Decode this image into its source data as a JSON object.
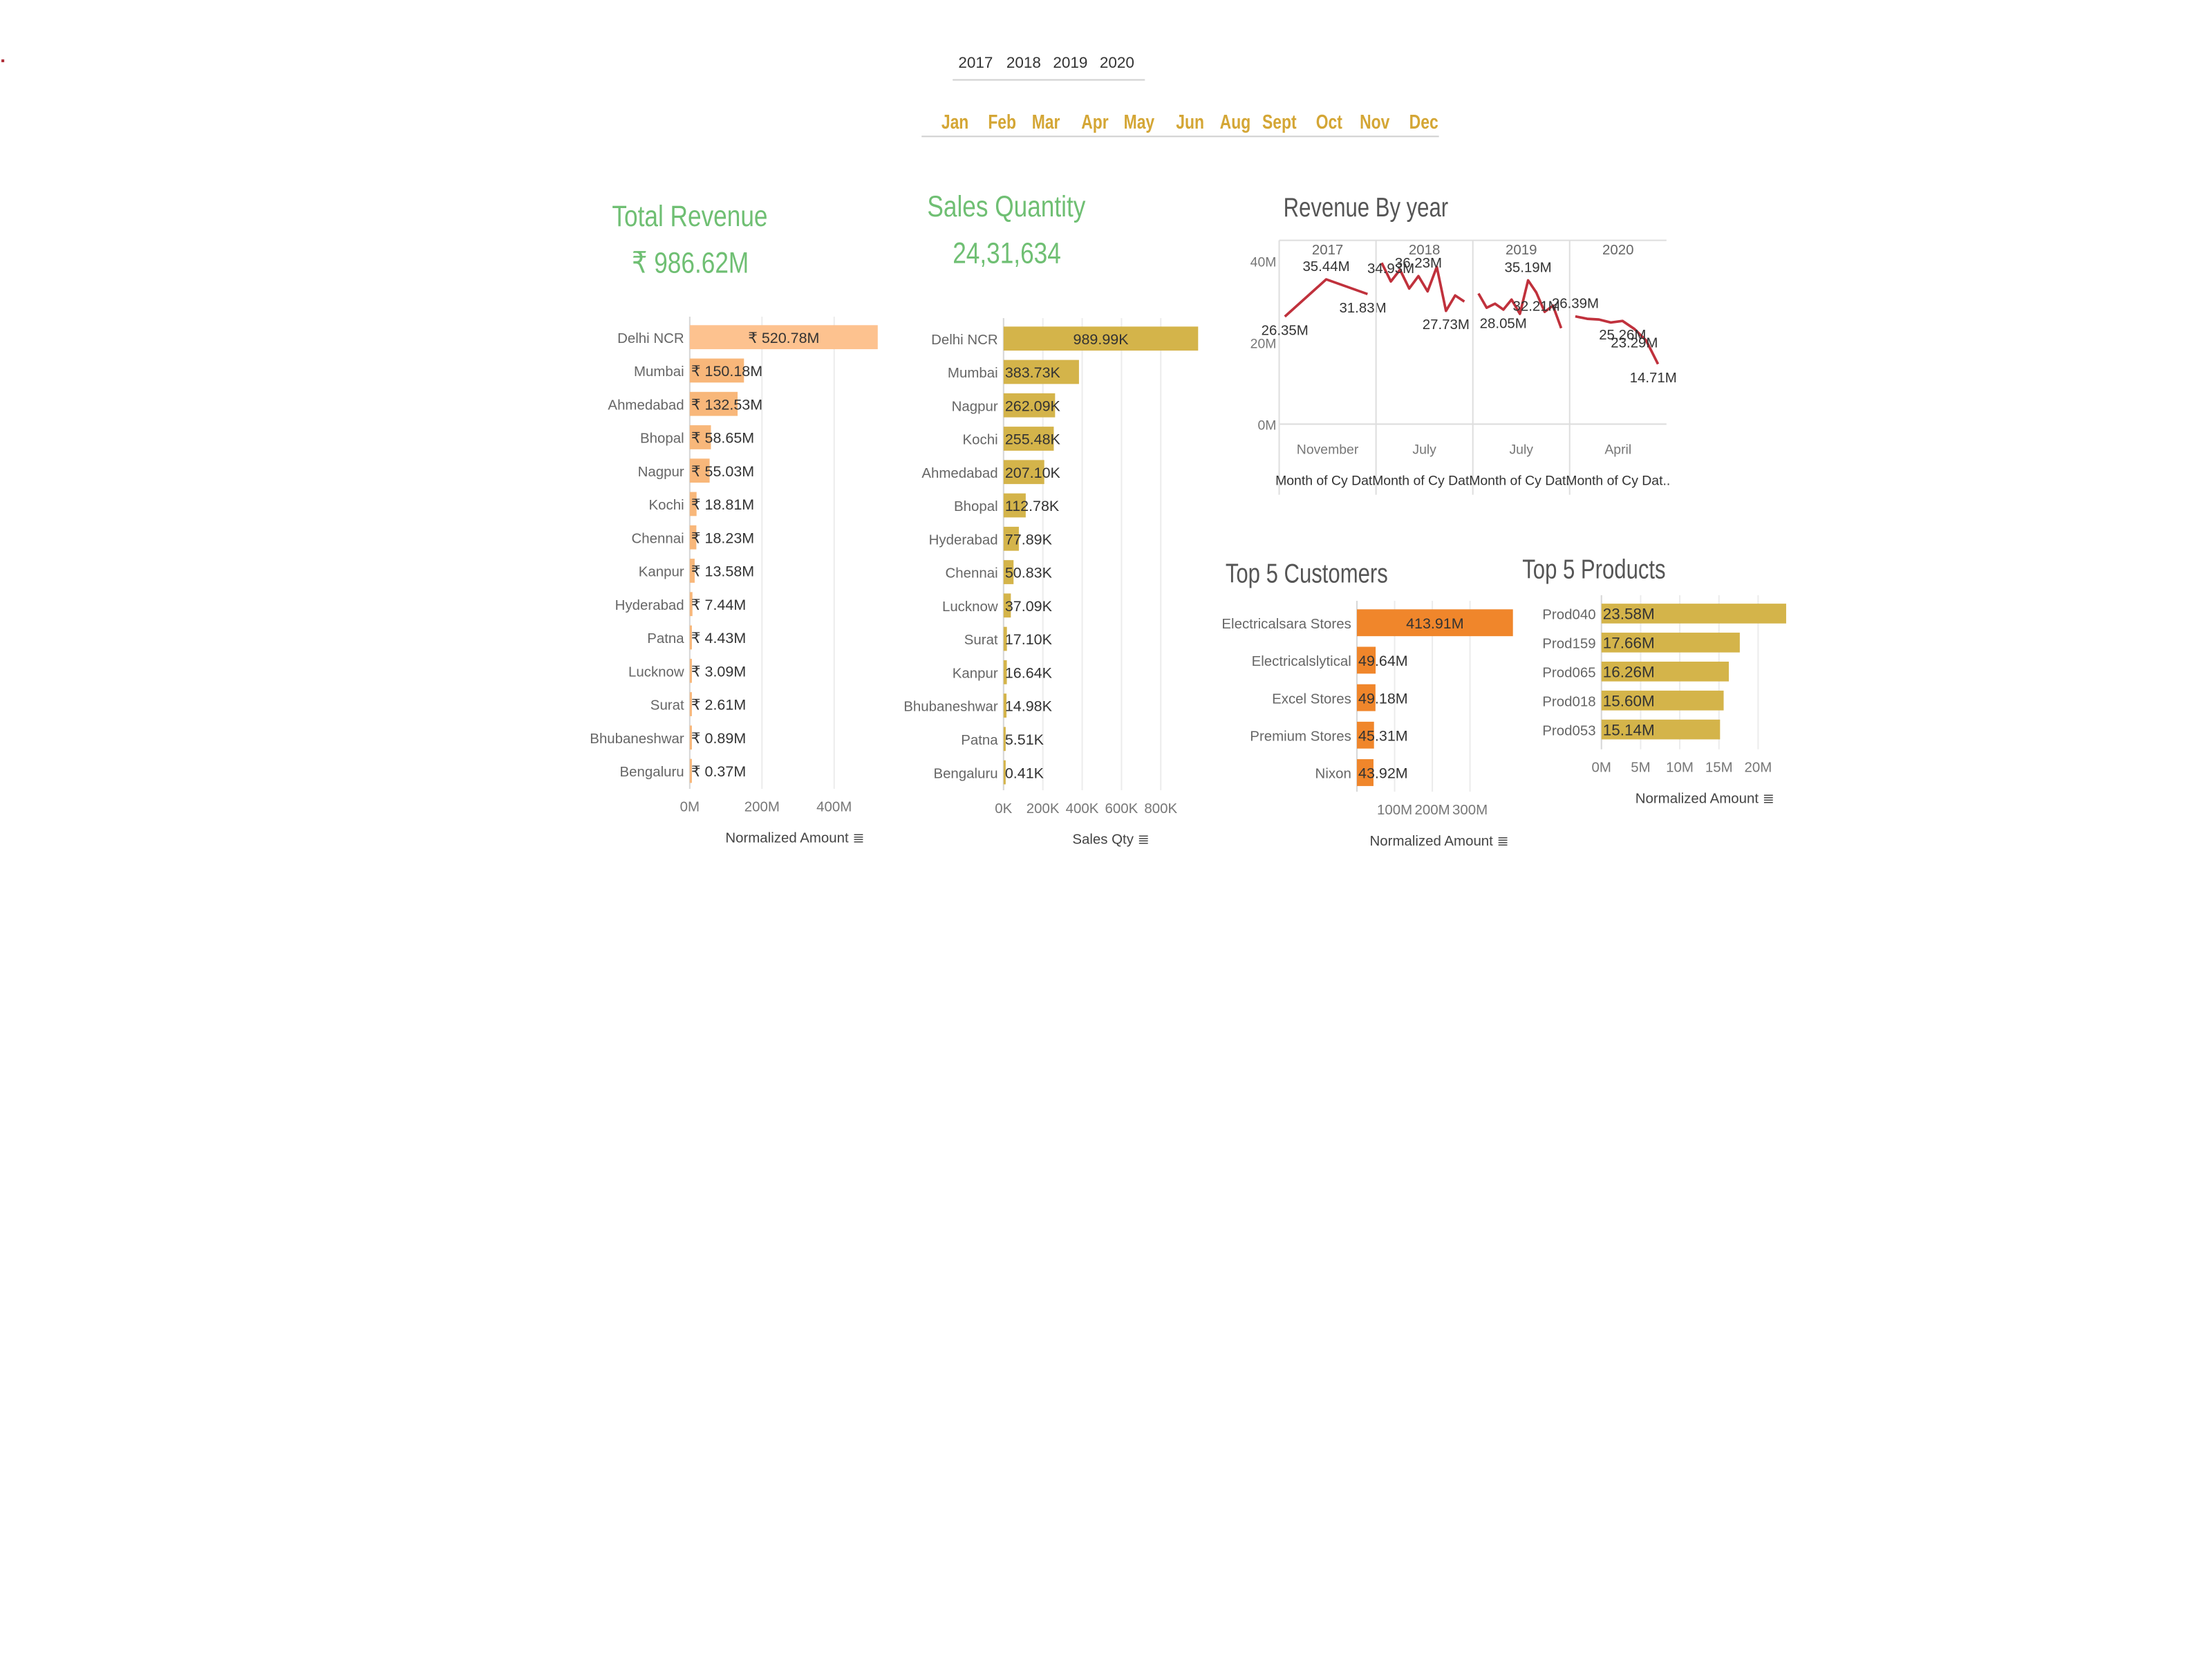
{
  "filters": {
    "years": [
      "2017",
      "2018",
      "2019",
      "2020"
    ],
    "months": [
      "Jan",
      "Feb",
      "Mar",
      "Apr",
      "May",
      "Jun",
      "Aug",
      "Sept",
      "Oct",
      "Nov",
      "Dec"
    ],
    "month_color": "#d4a635"
  },
  "kpis": {
    "revenue_title": "Total Revenue",
    "revenue_value": "₹ 986.62M",
    "qty_title": "Sales Quantity",
    "qty_value": "24,31,634",
    "color": "#6fbf73"
  },
  "chart_data": [
    {
      "id": "revenue_by_city",
      "type": "bar",
      "orientation": "horizontal",
      "color": "#f8b77a",
      "highlight_color": "#fdc28f",
      "categories": [
        "Delhi NCR",
        "Mumbai",
        "Ahmedabad",
        "Bhopal",
        "Nagpur",
        "Kochi",
        "Chennai",
        "Kanpur",
        "Hyderabad",
        "Patna",
        "Lucknow",
        "Surat",
        "Bhubaneshwar",
        "Bengaluru"
      ],
      "values": [
        520.78,
        150.18,
        132.53,
        58.65,
        55.03,
        18.81,
        18.23,
        13.58,
        7.44,
        4.43,
        3.09,
        2.61,
        0.89,
        0.37
      ],
      "labels": [
        "₹ 520.78M",
        "₹ 150.18M",
        "₹ 132.53M",
        "₹ 58.65M",
        "₹ 55.03M",
        "₹ 18.81M",
        "₹ 18.23M",
        "₹ 13.58M",
        "₹ 7.44M",
        "₹ 4.43M",
        "₹ 3.09M",
        "₹ 2.61M",
        "₹ 0.89M",
        "₹ 0.37M"
      ],
      "xticks": [
        "0M",
        "200M",
        "400M"
      ],
      "xtick_values": [
        0,
        200,
        400
      ],
      "xlim": [
        0,
        560
      ],
      "xlabel": "Normalized Amount"
    },
    {
      "id": "qty_by_city",
      "type": "bar",
      "orientation": "horizontal",
      "color": "#d4b44a",
      "categories": [
        "Delhi NCR",
        "Mumbai",
        "Nagpur",
        "Kochi",
        "Ahmedabad",
        "Bhopal",
        "Hyderabad",
        "Chennai",
        "Lucknow",
        "Surat",
        "Kanpur",
        "Bhubaneshwar",
        "Patna",
        "Bengaluru"
      ],
      "values": [
        989.99,
        383.73,
        262.09,
        255.48,
        207.1,
        112.78,
        77.89,
        50.83,
        37.09,
        17.1,
        16.64,
        14.98,
        5.51,
        0.41
      ],
      "labels": [
        "989.99K",
        "383.73K",
        "262.09K",
        "255.48K",
        "207.10K",
        "112.78K",
        "77.89K",
        "50.83K",
        "37.09K",
        "17.10K",
        "16.64K",
        "14.98K",
        "5.51K",
        "0.41K"
      ],
      "xticks": [
        "0K",
        "200K",
        "400K",
        "600K",
        "800K"
      ],
      "xtick_values": [
        0,
        200,
        400,
        600,
        800
      ],
      "xlim": [
        0,
        1050
      ],
      "xlabel": "Sales Qty"
    },
    {
      "id": "revenue_by_year",
      "type": "line",
      "title": "Revenue By year",
      "color": "#c0313c",
      "panels": [
        "2017",
        "2018",
        "2019",
        "2020"
      ],
      "panel_xlabels": [
        "November",
        "July",
        "July",
        "April"
      ],
      "panel_axis_label": "Month of Cy Dat..",
      "yticks": [
        "40M",
        "20M",
        "0M"
      ],
      "ytick_values": [
        40,
        20,
        0
      ],
      "ylim": [
        0,
        45
      ],
      "series": [
        {
          "values": [
            26.35,
            35.44,
            31.83
          ]
        },
        {
          "values": [
            39.5,
            34.93,
            37.8,
            33.2,
            36.23,
            32.5,
            38.5,
            27.73,
            31.5,
            30.0
          ]
        },
        {
          "values": [
            32.0,
            28.5,
            29.5,
            28.05,
            30.5,
            27.0,
            35.19,
            32.21,
            27.5,
            29.0,
            23.5
          ]
        },
        {
          "values": [
            26.39,
            25.8,
            25.6,
            24.9,
            25.26,
            23.29,
            20.5,
            14.71
          ]
        }
      ],
      "point_labels": [
        [
          "26.35M",
          "35.44M",
          "31.83M"
        ],
        [
          "",
          "34.93M",
          "",
          "",
          "36.23M",
          "",
          "",
          "27.73M",
          "",
          ""
        ],
        [
          "",
          "",
          "",
          "28.05M",
          "",
          "",
          "35.19M",
          "32.21M",
          "",
          "",
          ""
        ],
        [
          "26.39M",
          "",
          "",
          "",
          "25.26M",
          "23.29M",
          "",
          "14.71M"
        ]
      ]
    },
    {
      "id": "top_customers",
      "type": "bar",
      "orientation": "horizontal",
      "title": "Top 5 Customers",
      "color": "#f0862b",
      "categories": [
        "Electricalsara Stores",
        "Electricalslytical",
        "Excel Stores",
        "Premium Stores",
        "Nixon"
      ],
      "values": [
        413.91,
        49.64,
        49.18,
        45.31,
        43.92
      ],
      "labels": [
        "413.91M",
        "49.64M",
        "49.18M",
        "45.31M",
        "43.92M"
      ],
      "xticks": [
        "100M",
        "200M",
        "300M"
      ],
      "xtick_values": [
        100,
        200,
        300
      ],
      "xlim": [
        0,
        420
      ],
      "xlabel": "Normalized Amount"
    },
    {
      "id": "top_products",
      "type": "bar",
      "orientation": "horizontal",
      "title": "Top 5 Products",
      "color": "#d4b44a",
      "categories": [
        "Prod040",
        "Prod159",
        "Prod065",
        "Prod018",
        "Prod053"
      ],
      "values": [
        23.58,
        17.66,
        16.26,
        15.6,
        15.14
      ],
      "labels": [
        "23.58M",
        "17.66M",
        "16.26M",
        "15.60M",
        "15.14M"
      ],
      "xticks": [
        "0M",
        "5M",
        "10M",
        "15M",
        "20M"
      ],
      "xtick_values": [
        0,
        5,
        10,
        15,
        20
      ],
      "xlim": [
        0,
        24
      ],
      "xlabel": "Normalized Amount"
    }
  ]
}
